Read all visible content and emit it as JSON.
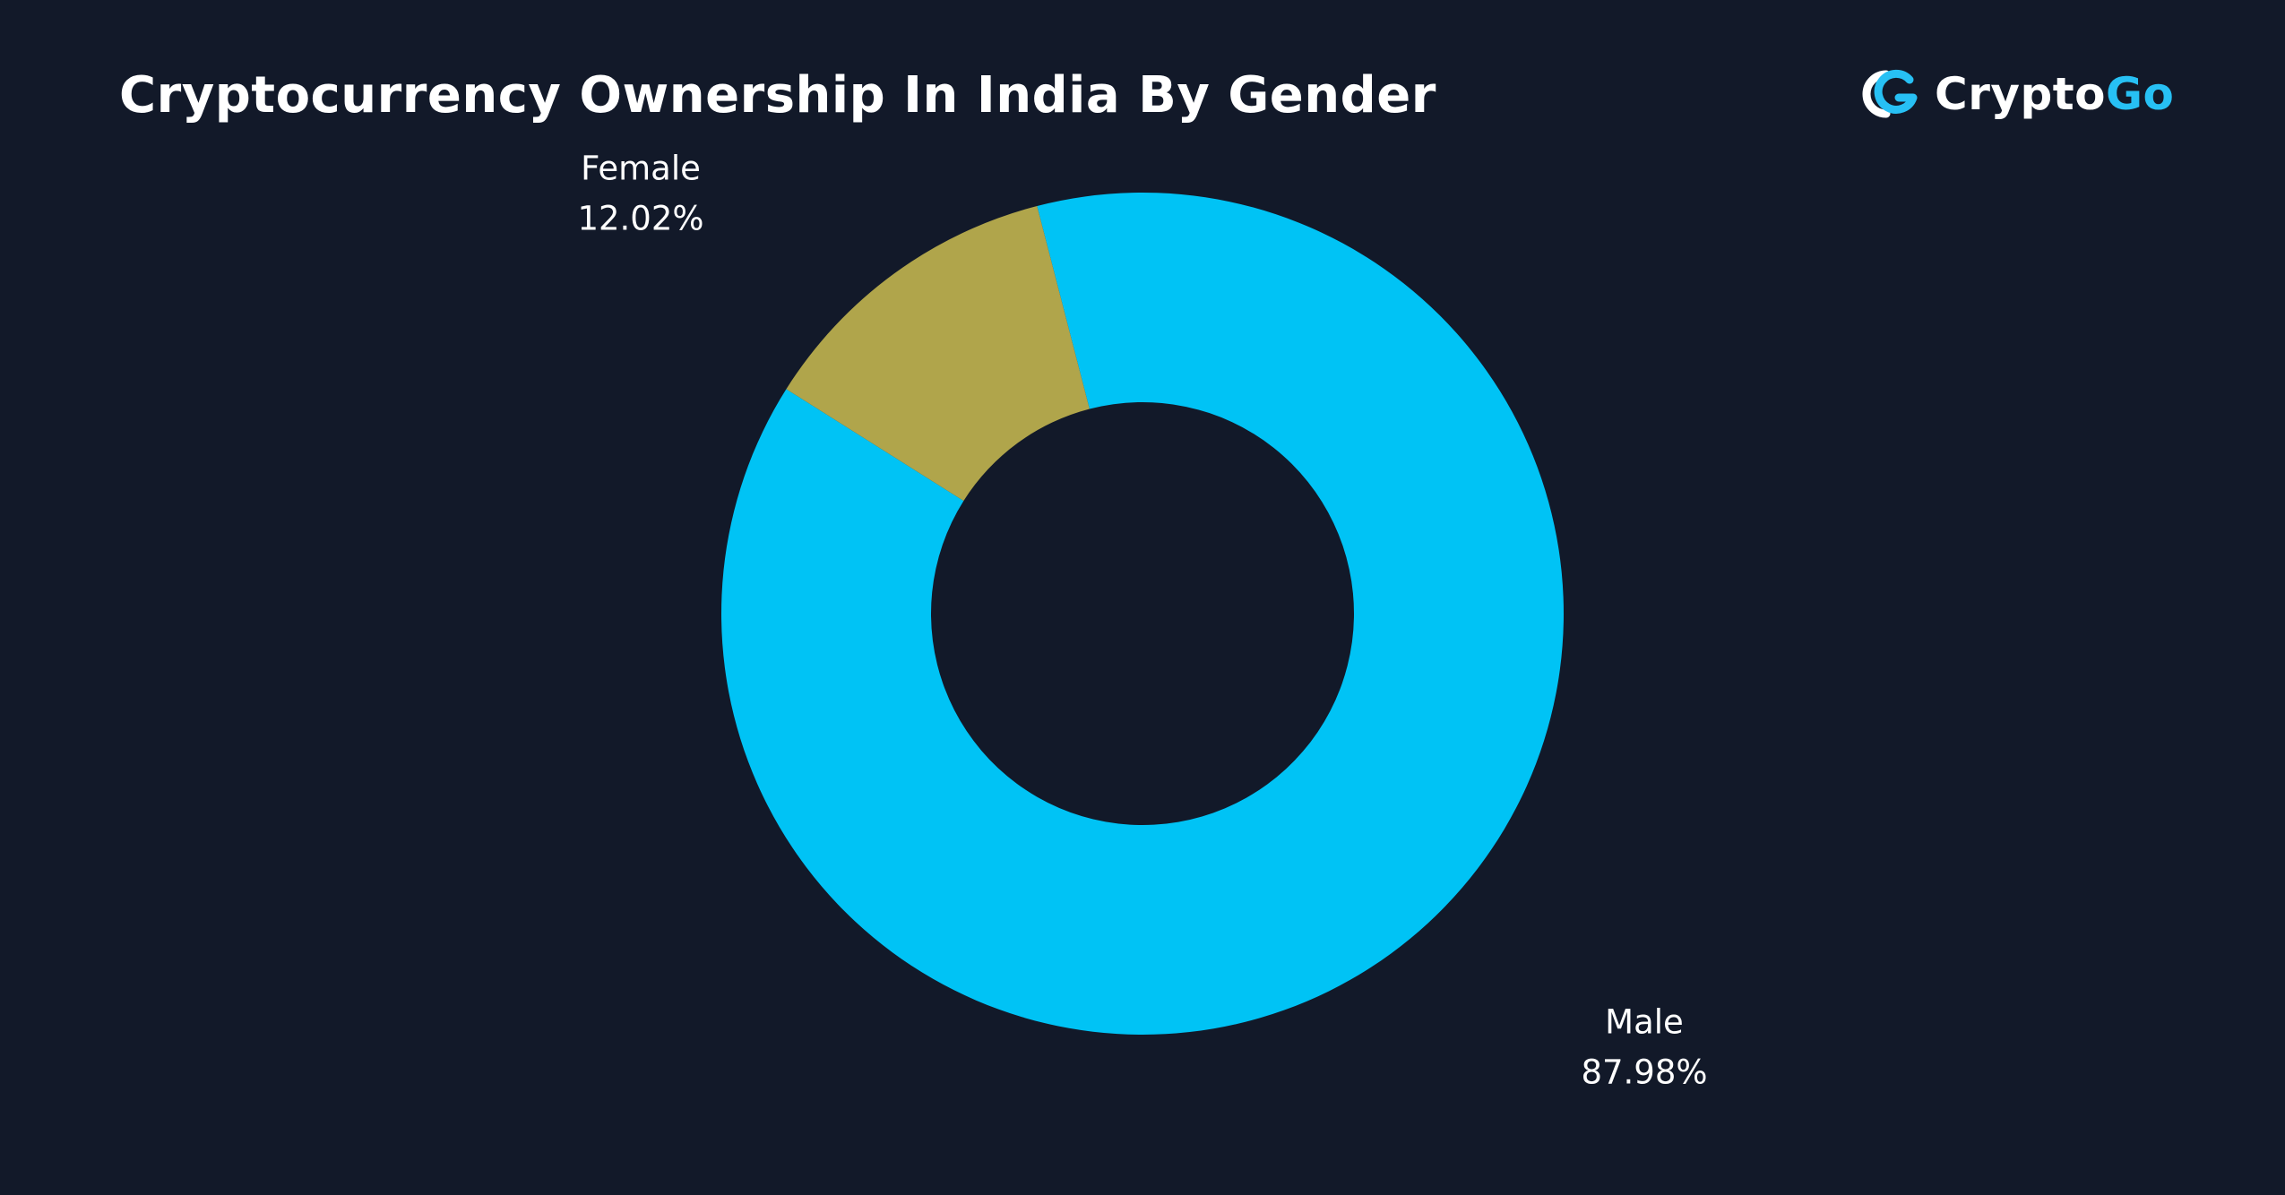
{
  "header": {
    "title": "Cryptocurrency Ownership In India By Gender"
  },
  "brand": {
    "name_part1": "Crypto",
    "name_part2": "Go",
    "icon": "cryptogo-logo-icon"
  },
  "colors": {
    "background": "#121929",
    "male": "#00c3f5",
    "female": "#b0a54b",
    "brand_accent": "#27c0f4"
  },
  "chart_data": {
    "type": "pie",
    "style": "donut",
    "title": "Cryptocurrency Ownership In India By Gender",
    "slices": [
      {
        "label": "Male",
        "value": 87.98,
        "value_label": "87.98%",
        "color": "#00c3f5"
      },
      {
        "label": "Female",
        "value": 12.02,
        "value_label": "12.02%",
        "color": "#b0a54b"
      }
    ]
  }
}
